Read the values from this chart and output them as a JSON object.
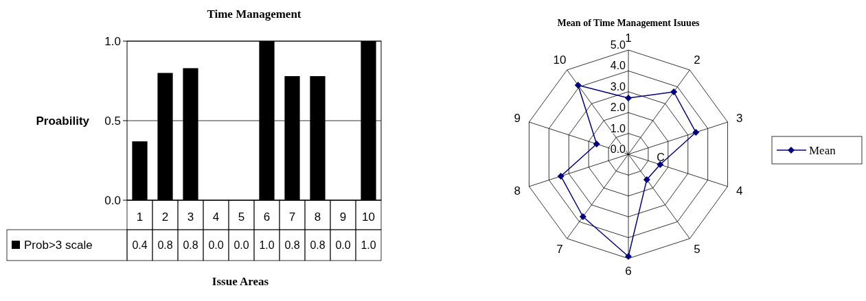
{
  "chart_data": [
    {
      "type": "bar",
      "title": "Time Management",
      "xlabel": "Issue Areas",
      "ylabel": "Proability",
      "categories": [
        "1",
        "2",
        "3",
        "4",
        "5",
        "6",
        "7",
        "8",
        "9",
        "10"
      ],
      "series": [
        {
          "name": "Prob>3 scale",
          "color": "#000000",
          "values": [
            0.37,
            0.8,
            0.83,
            0,
            0,
            1.0,
            0.78,
            0.78,
            0,
            1.0
          ],
          "value_labels": [
            "0.4",
            "0.8",
            "0.8",
            "0.0",
            "0.0",
            "1.0",
            "0.8",
            "0.8",
            "0.0",
            "1.0"
          ]
        }
      ],
      "ylim": [
        0,
        1
      ],
      "yticks": [
        {
          "value": 0,
          "label": "0.0"
        },
        {
          "value": 0.5,
          "label": "0.5"
        },
        {
          "value": 1,
          "label": "1.0"
        }
      ],
      "grid": "y",
      "legend": "bottom"
    },
    {
      "type": "radar",
      "title": "Mean of Time Management Isuues",
      "categories": [
        "1",
        "2",
        "3",
        "4",
        "5",
        "6",
        "7",
        "8",
        "9",
        "10"
      ],
      "series": [
        {
          "name": "Mean",
          "color": "#000080",
          "values": [
            2.7,
            3.7,
            3.4,
            1.6,
            1.5,
            4.9,
            3.7,
            3.4,
            1.6,
            4.1
          ]
        }
      ],
      "ylim": [
        0,
        5
      ],
      "yticks": [
        {
          "value": 0,
          "label": "0.0"
        },
        {
          "value": 1,
          "label": "1.0"
        },
        {
          "value": 2,
          "label": "2.0"
        },
        {
          "value": 3,
          "label": "3.0"
        },
        {
          "value": 4,
          "label": "4.0"
        },
        {
          "value": 5,
          "label": "5.0"
        }
      ],
      "marker": "diamond",
      "legend": "right",
      "grid": true,
      "annotations": [
        "C"
      ]
    }
  ]
}
